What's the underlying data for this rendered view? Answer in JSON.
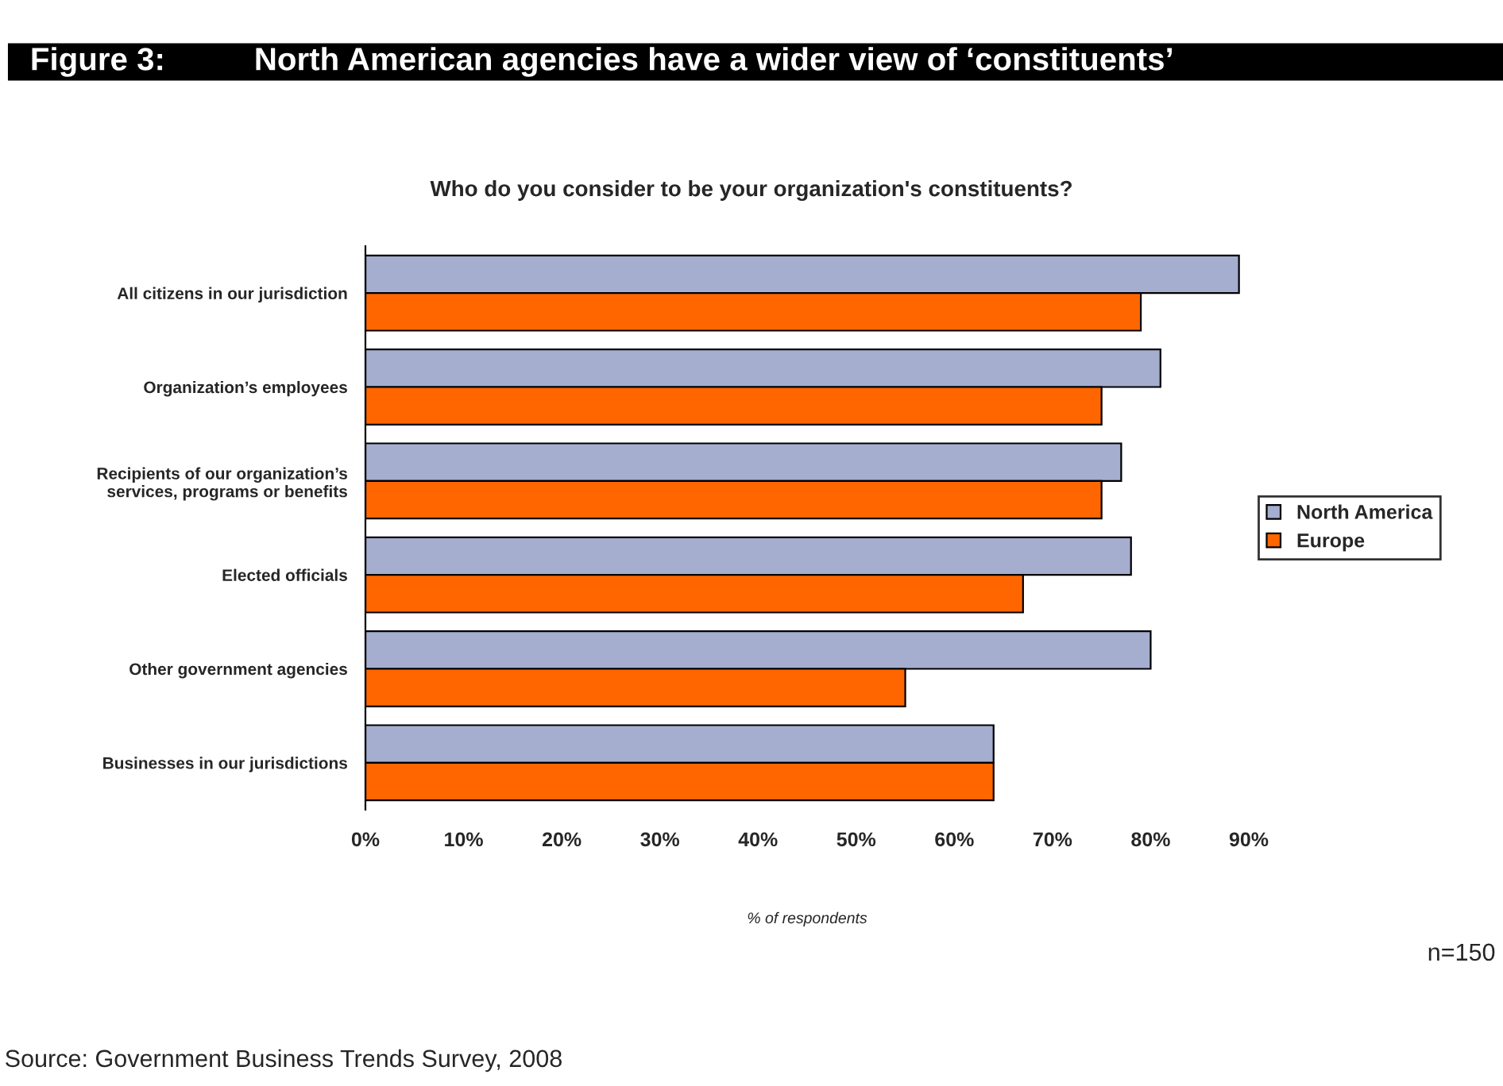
{
  "chart_data": {
    "type": "bar",
    "orientation": "horizontal",
    "title": "Figure 3:          North American agencies have a wider view of ‘constituents’",
    "subtitle": "Who do you consider to be your organization's constituents?",
    "xlabel": "% of respondents",
    "categories": [
      "All citizens in our jurisdiction",
      "Organization’s employees",
      "Recipients of our organization’s\nservices, programs or benefits",
      "Elected officials",
      "Other government agencies",
      "Businesses in our jurisdictions"
    ],
    "series": [
      {
        "name": "North America",
        "color": "#a5aecf",
        "values": [
          89,
          81,
          77,
          78,
          80,
          64
        ]
      },
      {
        "name": "Europe",
        "color": "#ff6600",
        "values": [
          79,
          75,
          75,
          67,
          55,
          64
        ]
      }
    ],
    "xlim": [
      0,
      90
    ],
    "xticks": [
      {
        "value": 0,
        "label": "0%"
      },
      {
        "value": 10,
        "label": "10%"
      },
      {
        "value": 20,
        "label": "20%"
      },
      {
        "value": 30,
        "label": "30%"
      },
      {
        "value": 40,
        "label": "40%"
      },
      {
        "value": 50,
        "label": "50%"
      },
      {
        "value": 60,
        "label": "60%"
      },
      {
        "value": 70,
        "label": "70%"
      },
      {
        "value": 80,
        "label": "80%"
      },
      {
        "value": 90,
        "label": "90%"
      }
    ],
    "legend": "right",
    "grid": false,
    "annotations": [
      "n=150",
      "Source: Government Business Trends Survey, 2008"
    ]
  }
}
